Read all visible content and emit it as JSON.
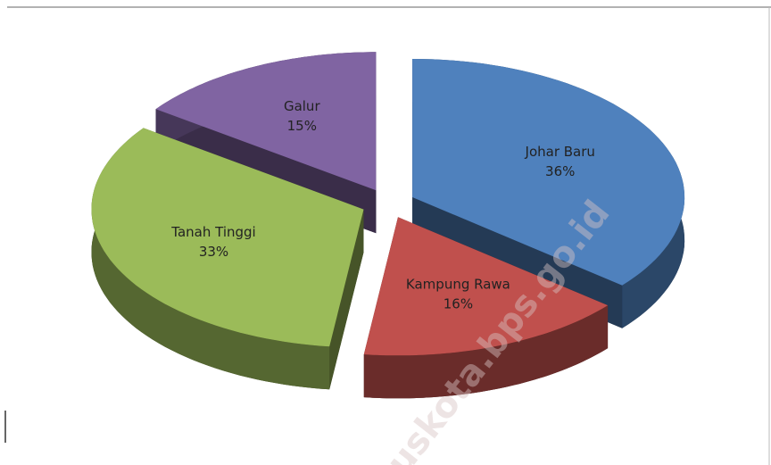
{
  "chart_data": {
    "type": "pie3d",
    "categories": [
      "Johar Baru",
      "Kampung Rawa",
      "Tanah Tinggi",
      "Galur"
    ],
    "values": [
      36,
      16,
      33,
      15
    ],
    "value_labels": [
      "36%",
      "16%",
      "33%",
      "15%"
    ],
    "colors": [
      "#4f81bd",
      "#c0504d",
      "#9bbb59",
      "#8064a2"
    ],
    "watermark": "uskota.bps.go.id"
  }
}
